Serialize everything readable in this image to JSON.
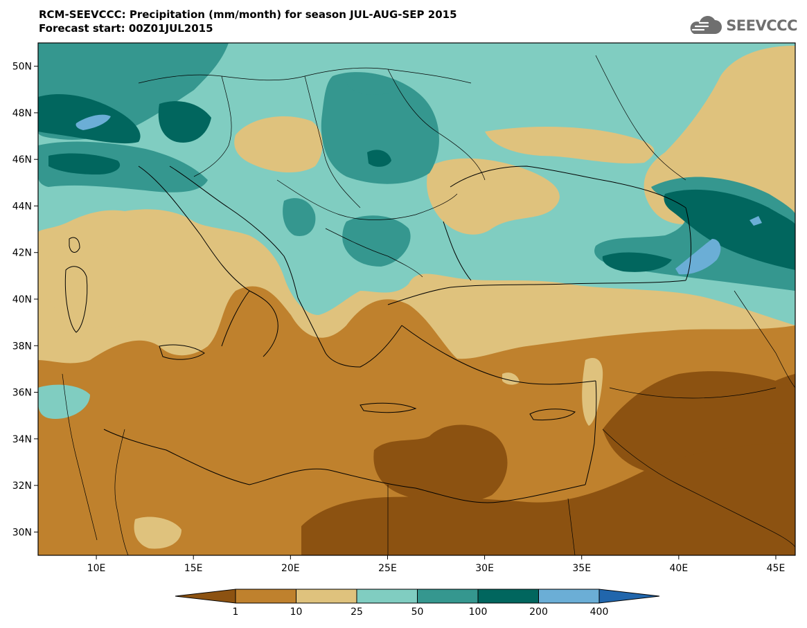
{
  "title": {
    "line1": "RCM-SEEVCCC: Precipitation (mm/month) for season JUL-AUG-SEP 2015",
    "line2": "Forecast start: 00Z01JUL2015"
  },
  "logo": {
    "text": "SEEVCCC",
    "icon": "cloud-icon",
    "color": "#6f6f6f"
  },
  "map": {
    "lat_labels": [
      "50N",
      "48N",
      "46N",
      "44N",
      "42N",
      "40N",
      "38N",
      "36N",
      "34N",
      "32N",
      "30N"
    ],
    "lon_labels": [
      "10E",
      "15E",
      "20E",
      "25E",
      "30E",
      "35E",
      "40E",
      "45E"
    ],
    "lat_range": [
      29,
      51
    ],
    "lon_range": [
      7,
      46
    ]
  },
  "colorbar": {
    "ticks": [
      "1",
      "10",
      "25",
      "50",
      "100",
      "200",
      "400"
    ],
    "colors": [
      "#8c5211",
      "#bf812d",
      "#dfc27d",
      "#80cdc1",
      "#35978f",
      "#01665e",
      "#6baed6",
      "#2166ac"
    ]
  }
}
